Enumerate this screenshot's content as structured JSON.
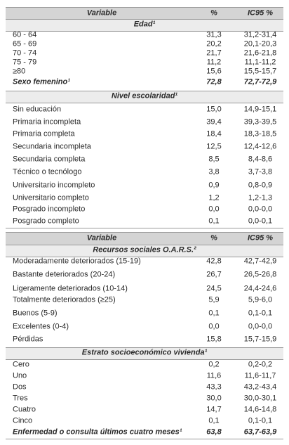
{
  "tables": [
    {
      "header": [
        "Variable",
        "%",
        "IC95 %"
      ],
      "sections": [
        {
          "title": "Edad¹",
          "rows": [
            [
              "60 - 64",
              "31,3",
              "31,2-31,4"
            ],
            [
              "65 - 69",
              "20,2",
              "20,1-20,3"
            ],
            [
              "70 - 74",
              "21,7",
              "21,6-21,8"
            ],
            [
              "75 - 79",
              "11,2",
              "11,1-11,2"
            ],
            [
              "≥80",
              "15,6",
              "15,5-15,7"
            ]
          ],
          "summary": [
            "Sexo femenino¹",
            "72,8",
            "72,7-72,9"
          ]
        },
        {
          "title": "Nivel escolaridad¹",
          "rows": [
            [
              "Sin educación",
              "15,0",
              "14,9-15,1"
            ],
            [
              "Primaria incompleta",
              "39,4",
              "39,3-39,5"
            ],
            [
              "Primaria completa",
              "18,4",
              "18,3-18,5"
            ],
            [
              "Secundaria incompleta",
              "12,5",
              "12,4-12,6"
            ],
            [
              "Secundaria completa",
              "8,5",
              "8,4-8,6"
            ],
            [
              "Técnico o tecnólogo",
              "3,8",
              "3,7-3,8"
            ],
            [
              "Universitario incompleto",
              "0,9",
              "0,8-0,9"
            ],
            [
              "Universitario completo",
              "1,2",
              "1,2-1,3"
            ],
            [
              "Posgrado incompleto",
              "0,0",
              "0,0-0,0"
            ],
            [
              "Posgrado completo",
              "0,1",
              "0,0-0,1"
            ]
          ]
        }
      ]
    },
    {
      "header": [
        "Variable",
        "%",
        "IC95 %"
      ],
      "sections": [
        {
          "title": "Recursos sociales O.A.R.S.²",
          "rows": [
            [
              "Moderadamente deteriorados (15-19)",
              "42,8",
              "42,7-42,9"
            ],
            [
              "Bastante deteriorados (20-24)",
              "26,7",
              "26,5-26,8"
            ],
            [
              "Ligeramente deteriorados (10-14)",
              "24,5",
              "24,4-24,6"
            ],
            [
              "Totalmente deteriorados (≥25)",
              "5,9",
              "5,9-6,0"
            ],
            [
              "Buenos (5-9)",
              "0,1",
              "0,1-0,1"
            ],
            [
              "Excelentes (0-4)",
              "0,0",
              "0,0-0,0"
            ],
            [
              "Pérdidas",
              "15,8",
              "15,7-15,9"
            ]
          ]
        },
        {
          "title": "Estrato socioeconómico vivienda¹",
          "rows": [
            [
              "Cero",
              "0,2",
              "0,2-0,2"
            ],
            [
              "Uno",
              "11,6",
              "11,6-11,7"
            ],
            [
              "Dos",
              "43,3",
              "43,2-43,4"
            ],
            [
              "Tres",
              "30,0",
              "30,0-30,1"
            ],
            [
              "Cuatro",
              "14,7",
              "14,6-14,8"
            ],
            [
              "Cinco",
              "0,1",
              "0,1-0,1"
            ]
          ],
          "summary": [
            "Enfermedad o consulta últimos cuatro meses¹",
            "63,8",
            "63,7-63,9"
          ]
        }
      ]
    }
  ]
}
